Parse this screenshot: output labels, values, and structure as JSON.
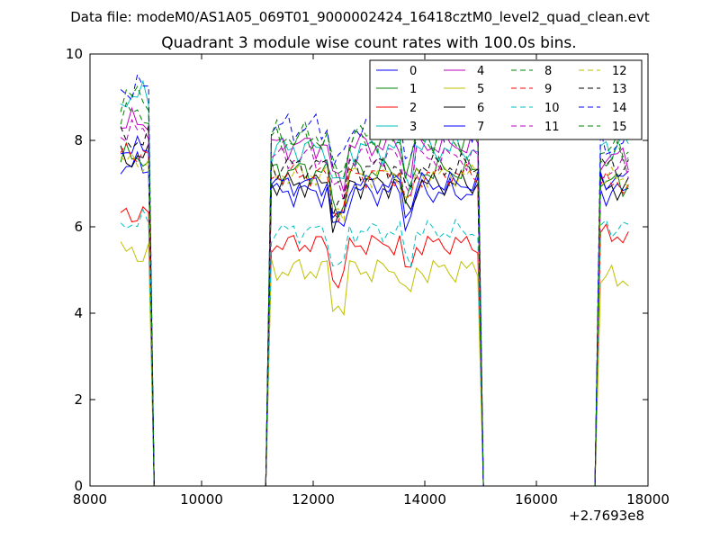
{
  "figure": {
    "suptitle": "Data file: modeM0/AS1A05_069T01_9000002424_16418cztM0_level2_quad_clean.evt"
  },
  "chart_data": {
    "type": "line",
    "title": "Quadrant 3 module wise count rates with 100.0s bins.",
    "xlabel": "",
    "ylabel": "",
    "x_offset_label": "+2.7693e8",
    "xlim": [
      8000,
      18000
    ],
    "ylim": [
      0,
      10
    ],
    "x_ticks": [
      8000,
      10000,
      12000,
      14000,
      16000,
      18000
    ],
    "y_ticks": [
      0,
      2,
      4,
      6,
      8,
      10
    ],
    "grid": false,
    "legend_position": "top-right",
    "legend_columns": 4,
    "segments": [
      {
        "start": 8550,
        "end": 9050,
        "step": 100
      },
      {
        "start": 11250,
        "end": 14950,
        "step": 100
      },
      {
        "start": 17150,
        "end": 17650,
        "step": 100
      }
    ],
    "gaps": [
      [
        9150,
        11150
      ],
      [
        15050,
        17050
      ]
    ],
    "series": [
      {
        "name": "0",
        "color": "#0000ff",
        "dash": false,
        "segment_means": [
          7.4,
          6.8,
          6.8
        ],
        "amp": 0.35
      },
      {
        "name": "1",
        "color": "#008000",
        "dash": false,
        "segment_means": [
          7.6,
          7.3,
          7.0
        ],
        "amp": 0.35
      },
      {
        "name": "2",
        "color": "#ff0000",
        "dash": false,
        "segment_means": [
          6.3,
          5.6,
          5.8
        ],
        "amp": 0.3
      },
      {
        "name": "3",
        "color": "#00bfbf",
        "dash": false,
        "segment_means": [
          9.0,
          7.8,
          7.9
        ],
        "amp": 0.4
      },
      {
        "name": "4",
        "color": "#bf00bf",
        "dash": false,
        "segment_means": [
          8.4,
          7.9,
          7.6
        ],
        "amp": 0.35
      },
      {
        "name": "5",
        "color": "#bfbf00",
        "dash": false,
        "segment_means": [
          5.4,
          5.0,
          4.8
        ],
        "amp": 0.35
      },
      {
        "name": "6",
        "color": "#000000",
        "dash": false,
        "segment_means": [
          7.6,
          7.0,
          6.9
        ],
        "amp": 0.35
      },
      {
        "name": "7",
        "color": "#0000ff",
        "dash": false,
        "segment_means": [
          7.8,
          7.0,
          7.1
        ],
        "amp": 0.3
      },
      {
        "name": "8",
        "color": "#008000",
        "dash": true,
        "segment_means": [
          8.6,
          8.0,
          7.8
        ],
        "amp": 0.35
      },
      {
        "name": "9",
        "color": "#ff0000",
        "dash": true,
        "segment_means": [
          7.7,
          7.2,
          7.0
        ],
        "amp": 0.3
      },
      {
        "name": "10",
        "color": "#00bfbf",
        "dash": true,
        "segment_means": [
          6.1,
          5.9,
          6.0
        ],
        "amp": 0.3
      },
      {
        "name": "11",
        "color": "#bf00bf",
        "dash": true,
        "segment_means": [
          8.2,
          7.6,
          7.3
        ],
        "amp": 0.35
      },
      {
        "name": "12",
        "color": "#bfbf00",
        "dash": true,
        "segment_means": [
          7.5,
          7.2,
          7.1
        ],
        "amp": 0.3
      },
      {
        "name": "13",
        "color": "#000000",
        "dash": true,
        "segment_means": [
          8.0,
          7.4,
          7.4
        ],
        "amp": 0.35
      },
      {
        "name": "14",
        "color": "#0000ff",
        "dash": true,
        "segment_means": [
          9.2,
          8.3,
          7.9
        ],
        "amp": 0.4
      },
      {
        "name": "15",
        "color": "#008000",
        "dash": true,
        "segment_means": [
          9.0,
          8.1,
          7.6
        ],
        "amp": 0.4
      }
    ]
  }
}
